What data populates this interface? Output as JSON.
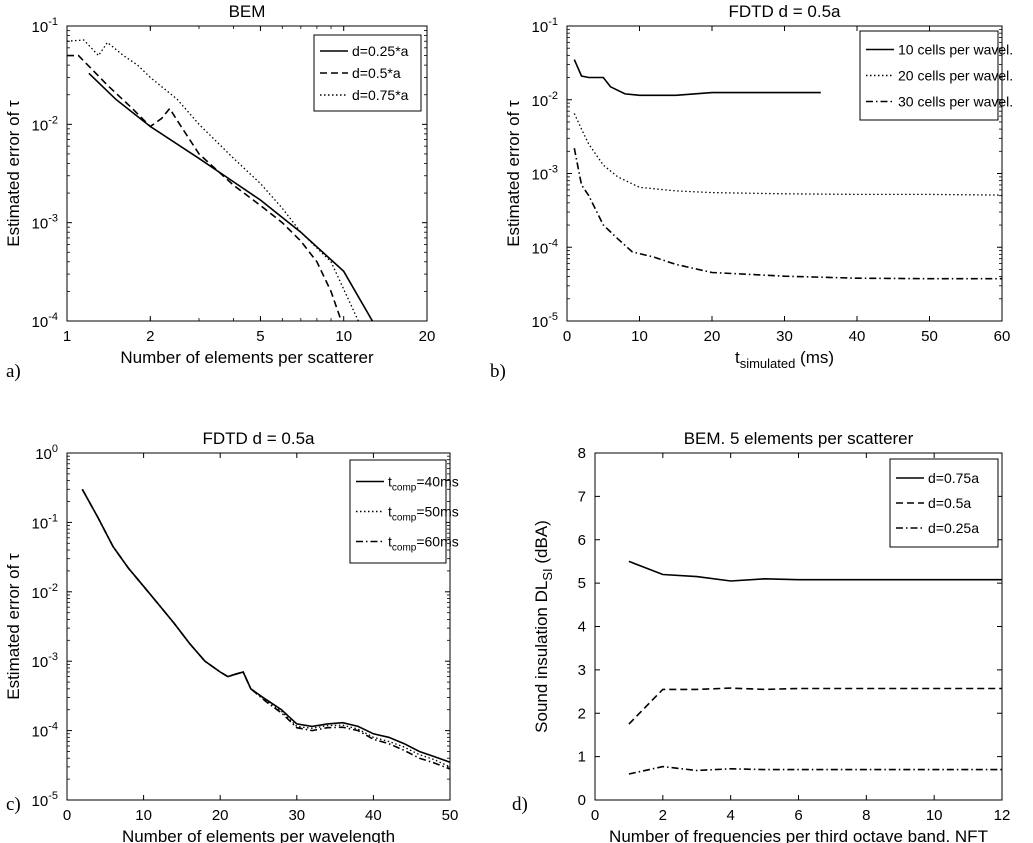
{
  "chart_data": [
    {
      "panel_label": "a)",
      "type": "line",
      "title": "BEM",
      "xlabel": "Number of elements per scatterer",
      "ylabel": "Estimated error of τ",
      "xscale": "log",
      "yscale": "log",
      "xlim": [
        1,
        20
      ],
      "ylim": [
        0.0001,
        0.1
      ],
      "xticks": [
        1,
        2,
        5,
        10,
        20
      ],
      "xtick_labels": [
        "1",
        "2",
        "5",
        "10",
        "20"
      ],
      "yticks": [
        0.0001,
        0.001,
        0.01,
        0.1
      ],
      "ytick_labels": [
        {
          "base": "10",
          "exp": "-4"
        },
        {
          "base": "10",
          "exp": "-3"
        },
        {
          "base": "10",
          "exp": "-2"
        },
        {
          "base": "10",
          "exp": "-1"
        }
      ],
      "grid": false,
      "legend": "top-right",
      "series": [
        {
          "name": "d=0.25*a",
          "style": "solid",
          "points": [
            [
              1.2,
              0.033
            ],
            [
              1.5,
              0.018
            ],
            [
              2,
              0.0095
            ],
            [
              3,
              0.0045
            ],
            [
              4,
              0.0026
            ],
            [
              5,
              0.0017
            ],
            [
              7,
              0.0008
            ],
            [
              10,
              0.00032
            ],
            [
              12.7,
              0.0001
            ]
          ]
        },
        {
          "name": "d=0.5*a",
          "style": "dashed",
          "points": [
            [
              1,
              0.05
            ],
            [
              1.1,
              0.05
            ],
            [
              1.4,
              0.025
            ],
            [
              1.7,
              0.015
            ],
            [
              2,
              0.0095
            ],
            [
              2.2,
              0.0115
            ],
            [
              2.35,
              0.0145
            ],
            [
              2.5,
              0.011
            ],
            [
              3,
              0.005
            ],
            [
              4,
              0.0024
            ],
            [
              5,
              0.0015
            ],
            [
              6,
              0.001
            ],
            [
              7,
              0.00065
            ],
            [
              8,
              0.0004
            ],
            [
              9,
              0.0002
            ],
            [
              9.8,
              0.0001
            ]
          ]
        },
        {
          "name": "d=0.75*a",
          "style": "dotted",
          "points": [
            [
              1,
              0.07
            ],
            [
              1.15,
              0.072
            ],
            [
              1.3,
              0.05
            ],
            [
              1.4,
              0.068
            ],
            [
              1.6,
              0.05
            ],
            [
              1.8,
              0.04
            ],
            [
              2,
              0.03
            ],
            [
              2.5,
              0.018
            ],
            [
              3,
              0.01
            ],
            [
              4,
              0.0045
            ],
            [
              5,
              0.0025
            ],
            [
              6,
              0.0014
            ],
            [
              7,
              0.0008
            ],
            [
              9,
              0.0004
            ],
            [
              11.3,
              0.0001
            ]
          ]
        }
      ]
    },
    {
      "panel_label": "b)",
      "type": "line",
      "title": "FDTD d = 0.5a",
      "xlabel": "t_simulated (ms)",
      "xlabel_main": "t",
      "xlabel_sub": "simulated",
      "xlabel_tail": " (ms)",
      "ylabel": "Estimated error of τ",
      "xscale": "linear",
      "yscale": "log",
      "xlim": [
        0,
        60
      ],
      "ylim": [
        1e-05,
        0.1
      ],
      "xticks": [
        0,
        10,
        20,
        30,
        40,
        50,
        60
      ],
      "xtick_labels": [
        "0",
        "10",
        "20",
        "30",
        "40",
        "50",
        "60"
      ],
      "yticks": [
        1e-05,
        0.0001,
        0.001,
        0.01,
        0.1
      ],
      "ytick_labels": [
        {
          "base": "10",
          "exp": "-5"
        },
        {
          "base": "10",
          "exp": "-4"
        },
        {
          "base": "10",
          "exp": "-3"
        },
        {
          "base": "10",
          "exp": "-2"
        },
        {
          "base": "10",
          "exp": "-1"
        }
      ],
      "grid": false,
      "legend": "top-right",
      "series": [
        {
          "name": "10 cells per wavel.",
          "style": "solid",
          "points": [
            [
              1,
              0.035
            ],
            [
              2,
              0.021
            ],
            [
              3,
              0.02
            ],
            [
              5,
              0.02
            ],
            [
              6,
              0.015
            ],
            [
              8,
              0.012
            ],
            [
              10,
              0.0115
            ],
            [
              15,
              0.0115
            ],
            [
              20,
              0.0125
            ],
            [
              30,
              0.0125
            ],
            [
              35,
              0.0125
            ]
          ]
        },
        {
          "name": "20 cells per wavel.",
          "style": "dotted",
          "points": [
            [
              1,
              0.0065
            ],
            [
              2,
              0.004
            ],
            [
              3,
              0.0025
            ],
            [
              5,
              0.0013
            ],
            [
              7,
              0.0009
            ],
            [
              10,
              0.00065
            ],
            [
              15,
              0.00058
            ],
            [
              20,
              0.00055
            ],
            [
              30,
              0.00053
            ],
            [
              40,
              0.00052
            ],
            [
              50,
              0.00052
            ],
            [
              60,
              0.00051
            ]
          ]
        },
        {
          "name": "30 cells per wavel.",
          "style": "dashdot",
          "points": [
            [
              1,
              0.0022
            ],
            [
              2,
              0.0007
            ],
            [
              3,
              0.0005
            ],
            [
              5,
              0.0002
            ],
            [
              7,
              0.00013
            ],
            [
              9,
              8.65e-05
            ],
            [
              12,
              7.35e-05
            ],
            [
              15,
              5.85e-05
            ],
            [
              20,
              4.55e-05
            ],
            [
              30,
              4.05e-05
            ],
            [
              40,
              3.8e-05
            ],
            [
              50,
              3.75e-05
            ],
            [
              60,
              3.75e-05
            ]
          ]
        }
      ]
    },
    {
      "panel_label": "c)",
      "type": "line",
      "title": "FDTD d = 0.5a",
      "xlabel": "Number of elements per wavelength",
      "ylabel": "Estimated error of τ",
      "xscale": "linear",
      "yscale": "log",
      "xlim": [
        0,
        50
      ],
      "ylim": [
        1e-05,
        1
      ],
      "xticks": [
        0,
        10,
        20,
        30,
        40,
        50
      ],
      "xtick_labels": [
        "0",
        "10",
        "20",
        "30",
        "40",
        "50"
      ],
      "yticks": [
        1e-05,
        0.0001,
        0.001,
        0.01,
        0.1,
        1
      ],
      "ytick_labels": [
        {
          "base": "10",
          "exp": "-5"
        },
        {
          "base": "10",
          "exp": "-4"
        },
        {
          "base": "10",
          "exp": "-3"
        },
        {
          "base": "10",
          "exp": "-2"
        },
        {
          "base": "10",
          "exp": "-1"
        },
        {
          "base": "10",
          "exp": "0"
        }
      ],
      "grid": false,
      "legend": "top-right",
      "series": [
        {
          "name": "t_comp=40ms",
          "label_main": "t",
          "label_sub": "comp",
          "label_tail": "=40ms",
          "style": "solid",
          "points": [
            [
              2,
              0.3
            ],
            [
              4,
              0.12
            ],
            [
              6,
              0.045
            ],
            [
              8,
              0.022
            ],
            [
              10,
              0.012
            ],
            [
              12,
              0.0065
            ],
            [
              14,
              0.0035
            ],
            [
              16,
              0.0018
            ],
            [
              18,
              0.001
            ],
            [
              20,
              0.0007
            ],
            [
              21,
              0.0006
            ],
            [
              22,
              0.00065
            ],
            [
              23,
              0.0007
            ],
            [
              24,
              0.0004
            ],
            [
              26,
              0.00028
            ],
            [
              28,
              0.0002
            ],
            [
              30,
              0.000125
            ],
            [
              32,
              0.000115
            ],
            [
              34,
              0.000125
            ],
            [
              36,
              0.00013
            ],
            [
              38,
              0.000115
            ],
            [
              40,
              9e-05
            ],
            [
              42,
              8e-05
            ],
            [
              44,
              6.5e-05
            ],
            [
              46,
              5e-05
            ],
            [
              48,
              4.2e-05
            ],
            [
              50,
              3.5e-05
            ]
          ]
        },
        {
          "name": "t_comp=50ms",
          "label_main": "t",
          "label_sub": "comp",
          "label_tail": "=50ms",
          "style": "dotted",
          "points": [
            [
              2,
              0.3
            ],
            [
              4,
              0.12
            ],
            [
              6,
              0.045
            ],
            [
              8,
              0.022
            ],
            [
              10,
              0.012
            ],
            [
              12,
              0.0065
            ],
            [
              14,
              0.0035
            ],
            [
              16,
              0.0018
            ],
            [
              18,
              0.001
            ],
            [
              20,
              0.0007
            ],
            [
              21,
              0.0006
            ],
            [
              22,
              0.00065
            ],
            [
              23,
              0.0007
            ],
            [
              24,
              0.0004
            ],
            [
              26,
              0.00027
            ],
            [
              28,
              0.00019
            ],
            [
              30,
              0.000115
            ],
            [
              32,
              0.000108
            ],
            [
              34,
              0.000118
            ],
            [
              36,
              0.00012
            ],
            [
              38,
              0.000105
            ],
            [
              40,
              8e-05
            ],
            [
              42,
              7e-05
            ],
            [
              44,
              5.8e-05
            ],
            [
              46,
              4.5e-05
            ],
            [
              48,
              3.8e-05
            ],
            [
              50,
              3e-05
            ]
          ]
        },
        {
          "name": "t_comp=60ms",
          "label_main": "t",
          "label_sub": "comp",
          "label_tail": "=60ms",
          "style": "dashdot",
          "points": [
            [
              2,
              0.3
            ],
            [
              4,
              0.12
            ],
            [
              6,
              0.045
            ],
            [
              8,
              0.022
            ],
            [
              10,
              0.012
            ],
            [
              12,
              0.0065
            ],
            [
              14,
              0.0035
            ],
            [
              16,
              0.0018
            ],
            [
              18,
              0.001
            ],
            [
              20,
              0.0007
            ],
            [
              21,
              0.0006
            ],
            [
              22,
              0.00065
            ],
            [
              23,
              0.0007
            ],
            [
              24,
              0.0004
            ],
            [
              26,
              0.00026
            ],
            [
              28,
              0.00018
            ],
            [
              30,
              0.00011
            ],
            [
              32,
              0.0001
            ],
            [
              34,
              0.00011
            ],
            [
              36,
              0.000112
            ],
            [
              38,
              0.0001
            ],
            [
              40,
              7.5e-05
            ],
            [
              42,
              6.5e-05
            ],
            [
              44,
              5.2e-05
            ],
            [
              46,
              4e-05
            ],
            [
              48,
              3.4e-05
            ],
            [
              50,
              2.8e-05
            ]
          ]
        }
      ]
    },
    {
      "panel_label": "d)",
      "type": "line",
      "title": "BEM. 5 elements per scatterer",
      "xlabel": "Number of frequencies per third octave band. NFT",
      "ylabel": "Sound insulation DL_SI (dBA)",
      "ylabel_main": "Sound insulation DL",
      "ylabel_sub": "SI",
      "ylabel_tail": " (dBA)",
      "xscale": "linear",
      "yscale": "linear",
      "xlim": [
        0,
        12
      ],
      "ylim": [
        0,
        8
      ],
      "xticks": [
        0,
        2,
        4,
        6,
        8,
        10,
        12
      ],
      "xtick_labels": [
        "0",
        "2",
        "4",
        "6",
        "8",
        "10",
        "12"
      ],
      "yticks": [
        0,
        1,
        2,
        3,
        4,
        5,
        6,
        7,
        8
      ],
      "ytick_labels": [
        "0",
        "1",
        "2",
        "3",
        "4",
        "5",
        "6",
        "7",
        "8"
      ],
      "grid": false,
      "legend": "top-right",
      "series": [
        {
          "name": "d=0.75a",
          "style": "solid",
          "points": [
            [
              1,
              5.5
            ],
            [
              2,
              5.2
            ],
            [
              3,
              5.15
            ],
            [
              4,
              5.05
            ],
            [
              5,
              5.1
            ],
            [
              6,
              5.08
            ],
            [
              8,
              5.08
            ],
            [
              10,
              5.08
            ],
            [
              12,
              5.08
            ]
          ]
        },
        {
          "name": "d=0.5a",
          "style": "dashed",
          "points": [
            [
              1,
              1.75
            ],
            [
              2,
              2.55
            ],
            [
              3,
              2.55
            ],
            [
              4,
              2.58
            ],
            [
              5,
              2.55
            ],
            [
              6,
              2.57
            ],
            [
              8,
              2.57
            ],
            [
              10,
              2.57
            ],
            [
              12,
              2.57
            ]
          ]
        },
        {
          "name": "d=0.25a",
          "style": "dashdot",
          "points": [
            [
              1,
              0.6
            ],
            [
              2,
              0.77
            ],
            [
              3,
              0.68
            ],
            [
              4,
              0.72
            ],
            [
              5,
              0.7
            ],
            [
              6,
              0.7
            ],
            [
              8,
              0.7
            ],
            [
              10,
              0.7
            ],
            [
              12,
              0.7
            ]
          ]
        }
      ]
    }
  ]
}
